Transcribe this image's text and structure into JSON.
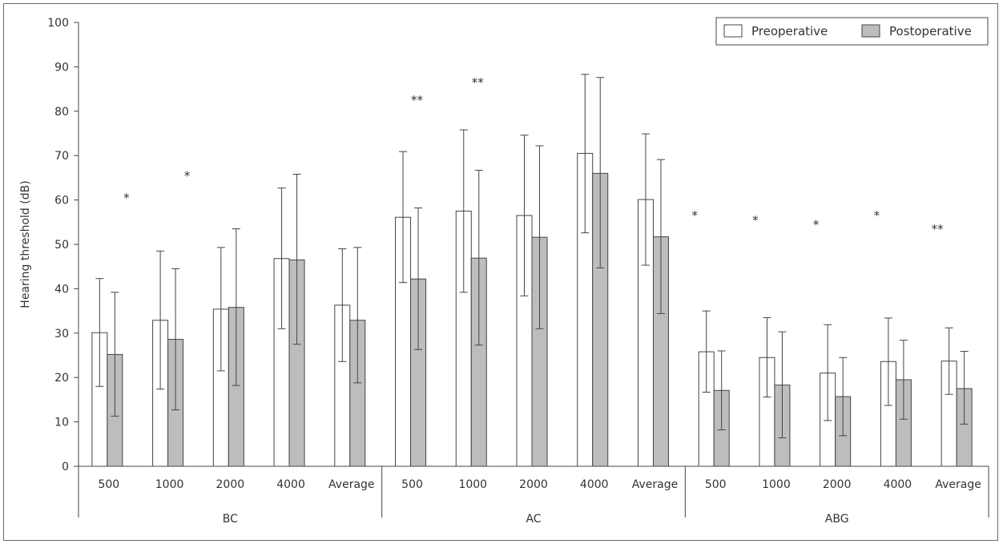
{
  "chart_data": {
    "type": "bar",
    "title": "",
    "ylabel": "Hearing threshold (dB)",
    "ylim": [
      0,
      100
    ],
    "yticks": [
      0,
      10,
      20,
      30,
      40,
      50,
      60,
      70,
      80,
      90,
      100
    ],
    "legend": {
      "position": "top-right",
      "entries": [
        "Preoperative",
        "Postoperative"
      ]
    },
    "grid": false,
    "colors": {
      "preoperative": "#ffffff",
      "postoperative": "#bdbdbd",
      "stroke": "#444444"
    },
    "groups": [
      {
        "label": "BC",
        "categories": [
          "500",
          "1000",
          "2000",
          "4000",
          "Average"
        ],
        "series": [
          {
            "name": "Preoperative",
            "values": [
              30.1,
              32.9,
              35.4,
              46.8,
              36.3
            ],
            "upper": [
              42.3,
              48.5,
              49.3,
              62.7,
              49.0
            ],
            "lower": [
              18.0,
              17.4,
              21.5,
              31.0,
              23.6
            ]
          },
          {
            "name": "Postoperative",
            "values": [
              25.2,
              28.6,
              35.8,
              46.5,
              32.9
            ],
            "upper": [
              39.2,
              44.5,
              53.5,
              65.8,
              49.3
            ],
            "lower": [
              11.3,
              12.7,
              18.2,
              27.5,
              18.8
            ]
          }
        ],
        "significance": [
          "*",
          "*",
          "",
          "",
          ""
        ],
        "sig_y": [
          61,
          66,
          null,
          null,
          null
        ]
      },
      {
        "label": "AC",
        "categories": [
          "500",
          "1000",
          "2000",
          "4000",
          "Average"
        ],
        "series": [
          {
            "name": "Preoperative",
            "values": [
              56.1,
              57.5,
              56.5,
              70.5,
              60.1
            ],
            "upper": [
              70.9,
              75.8,
              74.6,
              88.3,
              74.9
            ],
            "lower": [
              41.4,
              39.2,
              38.4,
              52.6,
              45.3
            ]
          },
          {
            "name": "Postoperative",
            "values": [
              42.2,
              46.9,
              51.6,
              66.0,
              51.7
            ],
            "upper": [
              58.2,
              66.7,
              72.2,
              87.6,
              69.1
            ],
            "lower": [
              26.3,
              27.3,
              31.0,
              44.7,
              34.4
            ]
          }
        ],
        "significance": [
          "**",
          "**",
          "",
          "",
          ""
        ],
        "sig_y": [
          83,
          87,
          null,
          null,
          null
        ]
      },
      {
        "label": "ABG",
        "categories": [
          "500",
          "1000",
          "2000",
          "4000",
          "Average"
        ],
        "series": [
          {
            "name": "Preoperative",
            "values": [
              25.8,
              24.5,
              21.0,
              23.6,
              23.7
            ],
            "upper": [
              35.0,
              33.5,
              31.9,
              33.4,
              31.2
            ],
            "lower": [
              16.7,
              15.6,
              10.3,
              13.7,
              16.2
            ]
          },
          {
            "name": "Postoperative",
            "values": [
              17.1,
              18.3,
              15.7,
              19.5,
              17.5
            ],
            "upper": [
              26.0,
              30.3,
              24.5,
              28.4,
              25.9
            ],
            "lower": [
              8.2,
              6.4,
              6.9,
              10.6,
              9.5
            ]
          }
        ],
        "significance": [
          "*",
          "*",
          "*",
          "*",
          "**"
        ],
        "sig_y": [
          57,
          56,
          55,
          57,
          54
        ]
      }
    ]
  }
}
